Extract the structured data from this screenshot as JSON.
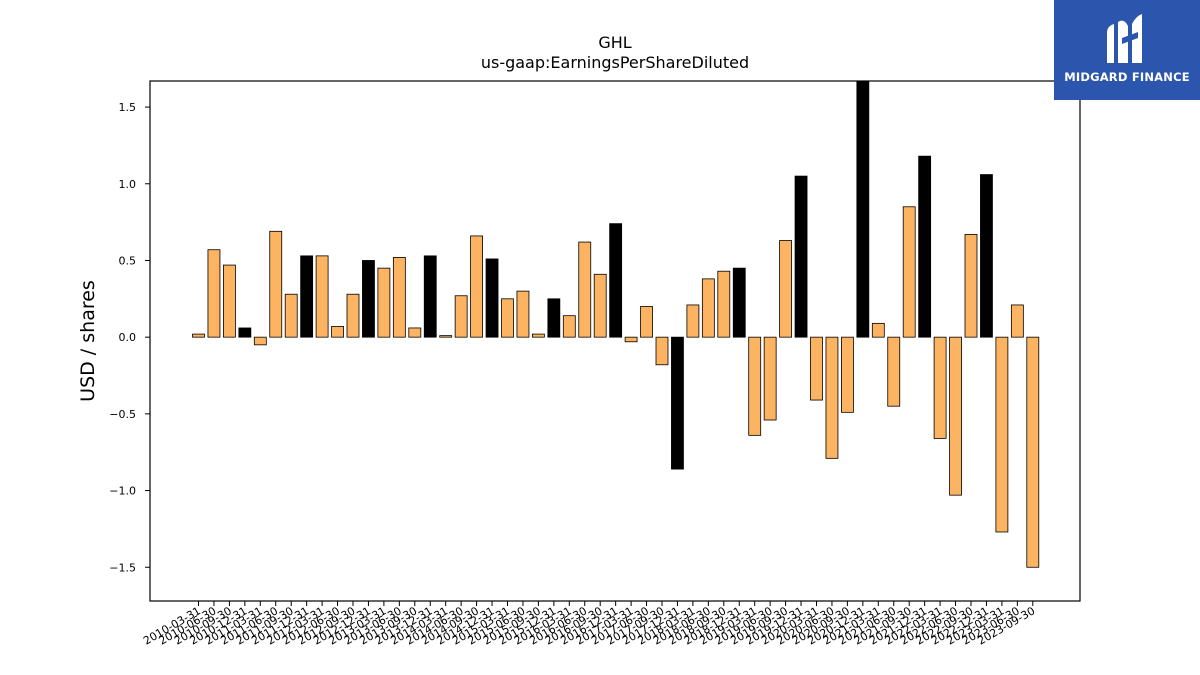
{
  "brand": {
    "name": "MIDGARD FINANCE",
    "bg_color": "#2c56ad",
    "icon": "midgard-m-logo-icon"
  },
  "chart_data": {
    "type": "bar",
    "title": "GHL",
    "subtitle": "us-gaap:EarningsPerShareDiluted",
    "xlabel": "",
    "ylabel": "USD / shares",
    "ylim": [
      -1.72,
      1.67
    ],
    "yticks": [
      -1.5,
      -1.0,
      -0.5,
      0.0,
      0.5,
      1.0,
      1.5
    ],
    "ytick_labels": [
      "−1.5",
      "−1.0",
      "−0.5",
      "0.0",
      "0.5",
      "1.0",
      "1.5"
    ],
    "grid": false,
    "colors": {
      "quarter": "#fdb462",
      "annual": "#000000",
      "edge": "#000000"
    },
    "categories": [
      "2010-03-31",
      "2010-06-30",
      "2010-09-30",
      "2010-12-31",
      "2011-03-31",
      "2011-06-30",
      "2011-09-30",
      "2011-12-31",
      "2012-03-31",
      "2012-06-30",
      "2012-09-30",
      "2012-12-31",
      "2013-03-31",
      "2013-06-30",
      "2013-09-30",
      "2013-12-31",
      "2014-03-31",
      "2014-06-30",
      "2014-09-30",
      "2014-12-31",
      "2015-03-31",
      "2015-06-30",
      "2015-09-30",
      "2015-12-31",
      "2016-03-31",
      "2016-06-30",
      "2016-09-30",
      "2016-12-31",
      "2017-03-31",
      "2017-06-30",
      "2017-09-30",
      "2017-12-31",
      "2018-03-31",
      "2018-06-30",
      "2018-09-30",
      "2018-12-31",
      "2019-03-31",
      "2019-06-30",
      "2019-09-30",
      "2019-12-31",
      "2020-03-31",
      "2020-06-30",
      "2020-09-30",
      "2020-12-31",
      "2021-03-31",
      "2021-06-30",
      "2021-09-30",
      "2021-12-31",
      "2022-03-31",
      "2022-06-30",
      "2022-09-30",
      "2022-12-31",
      "2023-03-31",
      "2023-06-30",
      "2023-09-30"
    ],
    "values": [
      0.02,
      0.57,
      0.47,
      0.06,
      -0.05,
      0.69,
      0.28,
      0.53,
      0.53,
      0.07,
      0.28,
      0.5,
      0.45,
      0.52,
      0.06,
      0.53,
      0.01,
      0.27,
      0.66,
      0.51,
      0.25,
      0.3,
      0.02,
      0.25,
      0.14,
      0.62,
      0.41,
      0.74,
      -0.03,
      0.2,
      -0.18,
      -0.86,
      0.21,
      0.38,
      0.43,
      0.45,
      -0.64,
      -0.54,
      0.63,
      1.05,
      -0.41,
      -0.79,
      -0.49,
      1.67,
      0.09,
      -0.45,
      0.85,
      1.18,
      -0.66,
      -1.03,
      0.67,
      1.06,
      -1.27,
      0.21,
      -1.5
    ],
    "annual": [
      false,
      false,
      false,
      true,
      false,
      false,
      false,
      true,
      false,
      false,
      false,
      true,
      false,
      false,
      false,
      true,
      false,
      false,
      false,
      true,
      false,
      false,
      false,
      true,
      false,
      false,
      false,
      true,
      false,
      false,
      false,
      true,
      false,
      false,
      false,
      true,
      false,
      false,
      false,
      true,
      false,
      false,
      false,
      true,
      false,
      false,
      false,
      true,
      false,
      false,
      false,
      true,
      false,
      false,
      false
    ]
  }
}
